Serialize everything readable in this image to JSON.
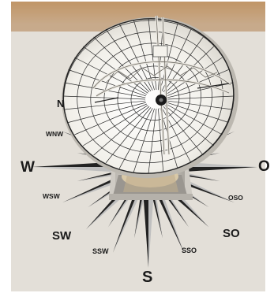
{
  "compass": {
    "labels": {
      "n": "N",
      "w": "W",
      "o": "O",
      "s": "S",
      "wnw": "WNW",
      "wsw": "WSW",
      "sw": "SW",
      "ssw": "SSW",
      "sso": "SSO",
      "so": "SO",
      "oso": "OSO"
    }
  },
  "colors": {
    "background": "#d9d5cd",
    "wall": "#b88a5a",
    "dish": "#f5f3ee",
    "grid": "#2a2a2a",
    "rose_dark": "#222222",
    "rose_light": "#bfbfbf"
  }
}
